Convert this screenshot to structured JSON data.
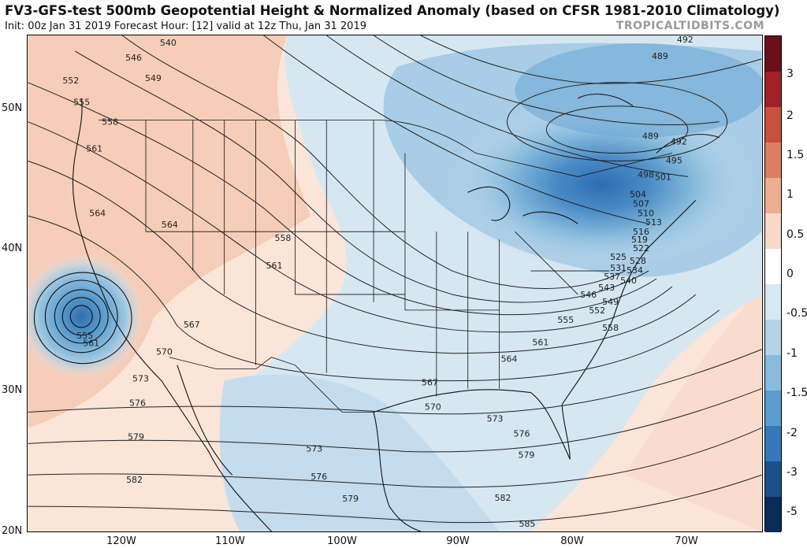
{
  "header": {
    "title": "FV3-GFS-test 500mb Geopotential Height & Normalized Anomaly (based on CFSR 1981-2010 Climatology)",
    "subtitle": "Init: 00z Jan 31 2019   Forecast Hour: [12]   valid at 12z Thu, Jan 31 2019",
    "credit": "TROPICALTIDBITS.COM"
  },
  "axes": {
    "lat_labels": [
      "50N",
      "40N",
      "30N",
      "20N"
    ],
    "lon_labels": [
      "120W",
      "110W",
      "100W",
      "90W",
      "80W",
      "70W"
    ]
  },
  "colorbar": {
    "labels": [
      "3",
      "2",
      "1.5",
      "1",
      "0.5",
      "0",
      "-0.5",
      "-1",
      "-1.5",
      "-2",
      "-3",
      "-5"
    ],
    "colors": [
      "#6b0f1a",
      "#a3202a",
      "#c8503f",
      "#dd7e64",
      "#efae92",
      "#f8d8c6",
      "#ffffff",
      "#d8e8f2",
      "#b4d3e8",
      "#88bbdc",
      "#5b9ccd",
      "#3677b8",
      "#1d4f8c",
      "#0c2a5a"
    ]
  },
  "contours": {
    "labels": [
      "540",
      "546",
      "549",
      "552",
      "555",
      "558",
      "561",
      "564",
      "564",
      "558",
      "561",
      "567",
      "570",
      "573",
      "576",
      "579",
      "582",
      "555",
      "561",
      "492",
      "489",
      "489",
      "492",
      "495",
      "498",
      "501",
      "504",
      "507",
      "510",
      "513",
      "516",
      "519",
      "522",
      "525",
      "528",
      "531",
      "534",
      "537",
      "540",
      "543",
      "546",
      "549",
      "552",
      "555",
      "558",
      "561",
      "564",
      "567",
      "570",
      "573",
      "576",
      "579",
      "582",
      "585",
      "573",
      "576",
      "579"
    ]
  },
  "anomaly_centers": {
    "low_west": "555",
    "low_east": "489"
  }
}
